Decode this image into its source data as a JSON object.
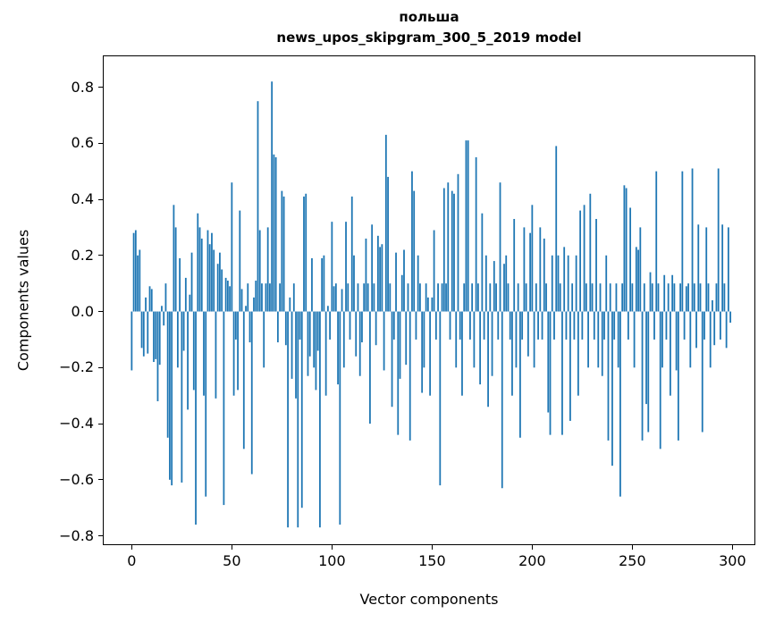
{
  "figure": {
    "title_line1": "польша",
    "title_line2": "news_upos_skipgram_300_5_2019 model"
  },
  "chart_data": {
    "type": "bar",
    "title": "польша — news_upos_skipgram_300_5_2019 model",
    "xlabel": "Vector components",
    "ylabel": "Components values",
    "bar_color": "#1f77b4",
    "grid": false,
    "legend": false,
    "xlim": [
      -14,
      311
    ],
    "ylim": [
      -0.83,
      0.91
    ],
    "x_start": 0,
    "x_ticks": [
      {
        "value": 0,
        "label": "0"
      },
      {
        "value": 50,
        "label": "50"
      },
      {
        "value": 100,
        "label": "100"
      },
      {
        "value": 150,
        "label": "150"
      },
      {
        "value": 200,
        "label": "200"
      },
      {
        "value": 250,
        "label": "250"
      },
      {
        "value": 300,
        "label": "300"
      }
    ],
    "y_ticks": [
      {
        "value": 0.8,
        "label": "0.8"
      },
      {
        "value": 0.6,
        "label": "0.6"
      },
      {
        "value": 0.4,
        "label": "0.4"
      },
      {
        "value": 0.2,
        "label": "0.2"
      },
      {
        "value": 0.0,
        "label": "0.0"
      },
      {
        "value": -0.2,
        "label": "−0.2"
      },
      {
        "value": -0.4,
        "label": "−0.4"
      },
      {
        "value": -0.6,
        "label": "−0.6"
      },
      {
        "value": -0.8,
        "label": "−0.8"
      }
    ],
    "values": [
      -0.21,
      0.28,
      0.29,
      0.2,
      0.22,
      -0.13,
      -0.16,
      0.05,
      -0.15,
      0.09,
      0.08,
      -0.18,
      -0.17,
      -0.32,
      -0.19,
      0.02,
      -0.05,
      0.1,
      -0.45,
      -0.6,
      -0.62,
      0.38,
      0.3,
      -0.2,
      0.19,
      -0.61,
      -0.14,
      0.12,
      -0.35,
      0.06,
      0.21,
      -0.28,
      -0.76,
      0.35,
      0.3,
      0.26,
      -0.3,
      -0.66,
      0.29,
      0.24,
      0.28,
      0.22,
      -0.31,
      0.17,
      0.21,
      0.15,
      -0.69,
      0.12,
      0.11,
      0.09,
      0.46,
      -0.3,
      -0.1,
      -0.28,
      0.36,
      0.08,
      -0.49,
      0.02,
      0.1,
      -0.11,
      -0.58,
      0.05,
      0.11,
      0.75,
      0.29,
      0.1,
      -0.2,
      0.1,
      0.3,
      0.1,
      0.82,
      0.56,
      0.55,
      -0.11,
      0.1,
      0.43,
      0.41,
      -0.12,
      -0.77,
      0.05,
      -0.24,
      0.1,
      -0.31,
      -0.77,
      -0.1,
      -0.7,
      0.41,
      0.42,
      -0.23,
      -0.16,
      0.19,
      -0.2,
      -0.28,
      -0.14,
      -0.77,
      0.19,
      0.2,
      -0.3,
      0.02,
      -0.1,
      0.32,
      0.09,
      0.1,
      -0.26,
      -0.76,
      0.08,
      -0.2,
      0.32,
      0.1,
      -0.1,
      0.41,
      0.2,
      -0.16,
      0.1,
      -0.23,
      -0.11,
      0.1,
      0.26,
      0.1,
      -0.4,
      0.31,
      0.1,
      -0.12,
      0.27,
      0.23,
      0.24,
      -0.21,
      0.63,
      0.48,
      0.1,
      -0.34,
      -0.1,
      0.21,
      -0.44,
      -0.24,
      0.13,
      0.22,
      -0.19,
      0.1,
      -0.46,
      0.5,
      0.43,
      -0.1,
      0.2,
      0.1,
      -0.29,
      -0.2,
      0.1,
      0.05,
      -0.3,
      0.05,
      0.29,
      -0.1,
      0.1,
      -0.62,
      0.1,
      0.44,
      0.1,
      0.46,
      -0.1,
      0.43,
      0.42,
      -0.2,
      0.49,
      -0.1,
      -0.3,
      0.1,
      0.61,
      0.61,
      -0.1,
      0.1,
      -0.2,
      0.55,
      0.1,
      -0.26,
      0.35,
      -0.1,
      0.2,
      -0.34,
      0.1,
      -0.23,
      0.18,
      0.1,
      -0.1,
      0.46,
      -0.63,
      0.17,
      0.2,
      0.1,
      -0.1,
      -0.3,
      0.33,
      -0.2,
      0.1,
      -0.45,
      -0.1,
      0.3,
      0.1,
      -0.16,
      0.28,
      0.38,
      -0.2,
      0.1,
      -0.1,
      0.3,
      -0.1,
      0.26,
      0.1,
      -0.36,
      -0.44,
      0.2,
      -0.1,
      0.59,
      0.2,
      0.1,
      -0.44,
      0.23,
      -0.1,
      0.2,
      -0.39,
      0.1,
      -0.1,
      0.2,
      -0.3,
      0.36,
      -0.1,
      0.38,
      0.1,
      -0.2,
      0.42,
      0.1,
      -0.1,
      0.33,
      -0.2,
      0.1,
      -0.23,
      -0.1,
      0.2,
      -0.46,
      0.1,
      -0.55,
      -0.1,
      0.1,
      -0.2,
      -0.66,
      0.1,
      0.45,
      0.44,
      -0.1,
      0.37,
      0.1,
      -0.2,
      0.23,
      0.22,
      0.3,
      -0.46,
      0.1,
      -0.33,
      -0.43,
      0.14,
      0.1,
      -0.1,
      0.5,
      0.1,
      -0.49,
      -0.2,
      0.13,
      -0.1,
      0.1,
      -0.3,
      0.13,
      0.1,
      -0.21,
      -0.46,
      0.1,
      0.5,
      -0.1,
      0.09,
      0.1,
      -0.2,
      0.51,
      0.1,
      -0.13,
      0.31,
      0.1,
      -0.43,
      -0.1,
      0.3,
      0.1,
      -0.2,
      0.04,
      -0.12,
      0.1,
      0.51,
      -0.1,
      0.31,
      0.1,
      -0.13,
      0.3,
      -0.04
    ]
  }
}
